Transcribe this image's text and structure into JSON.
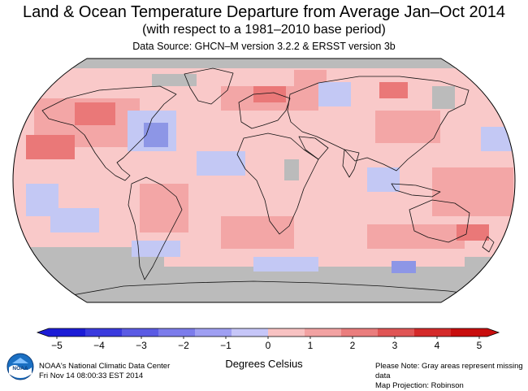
{
  "header": {
    "title": "Land & Ocean Temperature Departure from Average Jan–Oct 2014",
    "subtitle": "(with respect to a 1981–2010 base period)",
    "source": "Data Source: GHCN–M version 3.2.2 & ERSST version 3b"
  },
  "legend": {
    "ticks": [
      "−5",
      "−4",
      "−3",
      "−2",
      "−1",
      "0",
      "1",
      "2",
      "3",
      "4",
      "5"
    ],
    "colors": [
      "#1c1cd6",
      "#3a3ade",
      "#5b5be4",
      "#7c7ceb",
      "#9f9ff2",
      "#c6c6f8",
      "#f8c2c2",
      "#f2a2a2",
      "#ea7d7d",
      "#e05555",
      "#d42a2a",
      "#c80d0d"
    ],
    "unit_label": "Degrees Celsius"
  },
  "map": {
    "projection": "Robinson",
    "missing_color": "#bbbbbb",
    "ocean_color": "#f9c9c9",
    "warm_color": "#f3a6a6",
    "hot_color": "#ea7878",
    "cool_color": "#c3c8f4",
    "cold_color": "#8d96e6"
  },
  "footer": {
    "org": "NOAA's National Climatic Data Center",
    "timestamp": "Fri Nov 14 08:00:33 EST 2014",
    "note": "Please Note: Gray areas represent missing data",
    "projection": "Map Projection: Robinson"
  },
  "logo": {
    "text": "NOAA"
  }
}
